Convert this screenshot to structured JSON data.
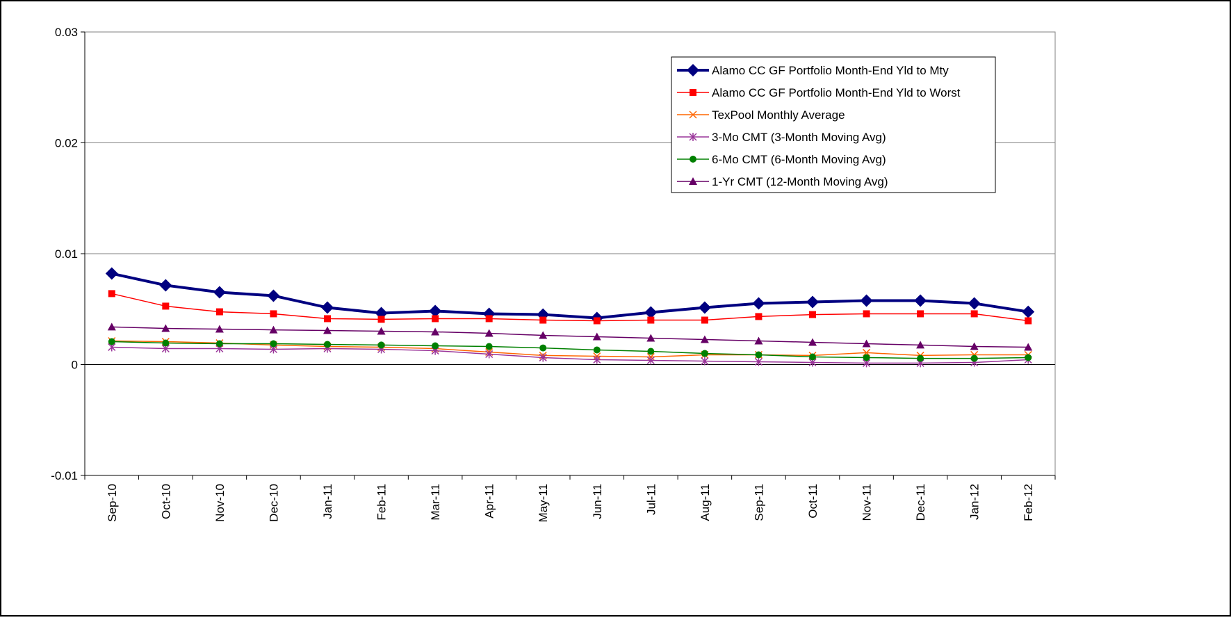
{
  "chart_data": {
    "type": "line",
    "categories": [
      "Sep-10",
      "Oct-10",
      "Nov-10",
      "Dec-10",
      "Jan-11",
      "Feb-11",
      "Mar-11",
      "Apr-11",
      "May-11",
      "Jun-11",
      "Jul-11",
      "Aug-11",
      "Sep-11",
      "Oct-11",
      "Nov-11",
      "Dec-11",
      "Jan-12",
      "Feb-12"
    ],
    "series": [
      {
        "name": "Alamo CC GF Portfolio Month-End Yld to Mty",
        "color": "#000080",
        "marker": "diamond",
        "values": [
          0.00821,
          0.00715,
          0.00652,
          0.00621,
          0.00514,
          0.00464,
          0.00483,
          0.00458,
          0.00451,
          0.0042,
          0.0047,
          0.00514,
          0.00552,
          0.00564,
          0.00577,
          0.00577,
          0.00552,
          0.00476
        ]
      },
      {
        "name": "Alamo CC GF Portfolio Month-End Yld to Worst",
        "color": "#ff0000",
        "marker": "square",
        "values": [
          0.0064,
          0.00527,
          0.00476,
          0.00458,
          0.00414,
          0.00408,
          0.00414,
          0.00414,
          0.00401,
          0.00395,
          0.00401,
          0.00401,
          0.00433,
          0.00451,
          0.00458,
          0.00458,
          0.00458,
          0.00395
        ]
      },
      {
        "name": "TexPool Monthly Average",
        "color": "#ff6600",
        "marker": "x",
        "values": [
          0.00213,
          0.00207,
          0.00194,
          0.00176,
          0.00163,
          0.00157,
          0.00144,
          0.00113,
          0.00082,
          0.00075,
          0.00069,
          0.00088,
          0.00088,
          0.00082,
          0.00107,
          0.00082,
          0.00088,
          0.00088
        ]
      },
      {
        "name": "3-Mo CMT (3-Month Moving Avg)",
        "color": "#993399",
        "marker": "star",
        "values": [
          0.00157,
          0.00144,
          0.00144,
          0.00138,
          0.00144,
          0.00138,
          0.00125,
          0.00094,
          0.00063,
          0.00044,
          0.00038,
          0.00031,
          0.00025,
          0.00019,
          0.00013,
          0.00013,
          0.00019,
          0.00044
        ]
      },
      {
        "name": "6-Mo CMT (6-Month Moving Avg)",
        "color": "#008000",
        "marker": "circle",
        "values": [
          0.00207,
          0.00194,
          0.00188,
          0.00188,
          0.00182,
          0.00176,
          0.00169,
          0.00163,
          0.0015,
          0.00132,
          0.00119,
          0.001,
          0.00088,
          0.00069,
          0.00063,
          0.00056,
          0.00056,
          0.00063
        ]
      },
      {
        "name": "1-Yr CMT (12-Month Moving Avg)",
        "color": "#660066",
        "marker": "triangle",
        "values": [
          0.00339,
          0.00326,
          0.0032,
          0.00313,
          0.00307,
          0.00301,
          0.00295,
          0.00282,
          0.00263,
          0.00251,
          0.00238,
          0.00226,
          0.00213,
          0.00201,
          0.00188,
          0.00176,
          0.00163,
          0.00157
        ]
      }
    ],
    "ylim": [
      -0.01,
      0.03
    ],
    "yticks": [
      0.03,
      0.02,
      0.01,
      0,
      -0.01
    ],
    "grid": true,
    "legend": "top-right"
  }
}
